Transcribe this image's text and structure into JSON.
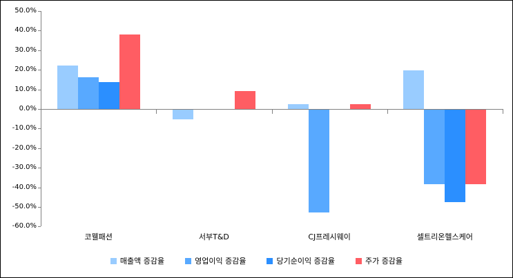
{
  "chart": {
    "background_color": "#ffffff",
    "border_color": "#000000",
    "axis_color": "#808080",
    "text_color": "#000000"
  },
  "chart_data": {
    "type": "bar",
    "title": "",
    "xlabel": "",
    "ylabel": "",
    "categories": [
      "코웰패션",
      "서부T&D",
      "CJ프레시웨이",
      "셀트리온헬스케어"
    ],
    "series": [
      {
        "name": "매출액 증감율",
        "color": "#99CCFF",
        "values": [
          22.3,
          -4.9,
          2.5,
          19.8
        ]
      },
      {
        "name": "영업이익 증감율",
        "color": "#58A9FF",
        "values": [
          16.3,
          0,
          -52.5,
          -37.9
        ]
      },
      {
        "name": "당기순이익 증감율",
        "color": "#2B8FFF",
        "values": [
          13.8,
          0,
          0,
          -47.3
        ]
      },
      {
        "name": "주가 증감율",
        "color": "#FF5D63",
        "values": [
          38.0,
          9.3,
          2.3,
          -38.2
        ]
      }
    ],
    "ylim": [
      -60,
      50
    ],
    "ytick_step": 10,
    "ytick_labels": [
      "50.0%",
      "40.0%",
      "30.0%",
      "20.0%",
      "10.0%",
      "0.0%",
      "-10.0%",
      "-20.0%",
      "-30.0%",
      "-40.0%",
      "-50.0%",
      "-60.0%"
    ],
    "grid": false,
    "legend_position": "bottom"
  }
}
